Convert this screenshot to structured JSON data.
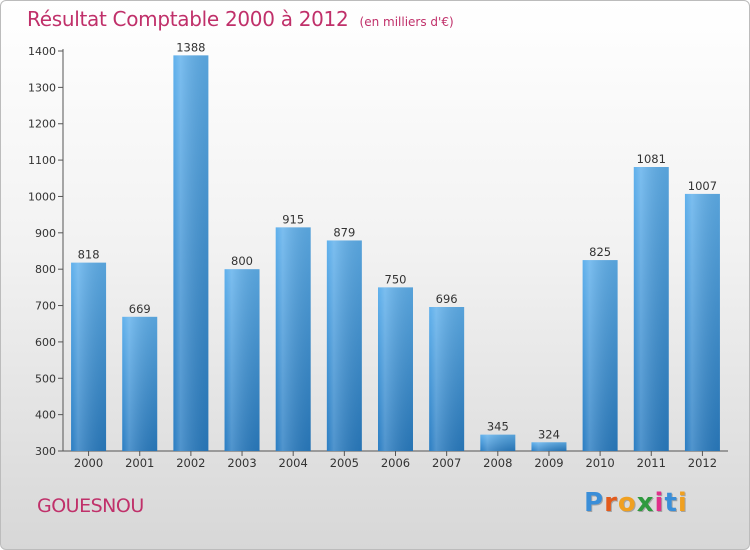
{
  "title": "Résultat Comptable 2000 à 2012",
  "subtitle": "(en milliers d'€)",
  "footer": {
    "city": "GOUESNOU",
    "logo_letters": [
      "P",
      "r",
      "o",
      "x",
      "i",
      "t",
      "i"
    ],
    "logo_colors": [
      "#3a8ed8",
      "#e35b1c",
      "#f0a020",
      "#2e9a3e",
      "#e0308a",
      "#3a8ed8",
      "#f0a020"
    ]
  },
  "colors": {
    "bar_light": "#5fb0ec",
    "bar_dark": "#2a7dc2",
    "text_title": "#c0306a",
    "axis": "#555555"
  },
  "chart_data": {
    "type": "bar",
    "title": "Résultat Comptable 2000 à 2012",
    "subtitle": "(en milliers d'€)",
    "categories": [
      "2000",
      "2001",
      "2002",
      "2003",
      "2004",
      "2005",
      "2006",
      "2007",
      "2008",
      "2009",
      "2010",
      "2011",
      "2012"
    ],
    "values": [
      818,
      669,
      1388,
      800,
      915,
      879,
      750,
      696,
      345,
      324,
      825,
      1081,
      1007
    ],
    "xlabel": "",
    "ylabel": "",
    "ylim": [
      300,
      1400
    ],
    "yticks": [
      300,
      400,
      500,
      600,
      700,
      800,
      900,
      1000,
      1100,
      1200,
      1300,
      1400
    ],
    "grid": false,
    "legend": "none",
    "data_labels": true
  }
}
